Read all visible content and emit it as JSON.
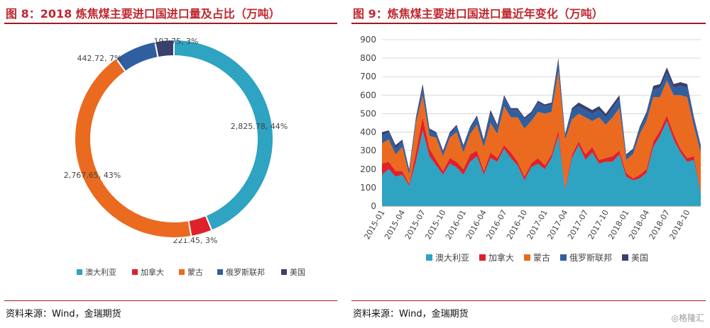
{
  "left": {
    "title": "图 8：2018 炼焦煤主要进口国进口量及占比（万吨）",
    "source": "资料来源：Wind，金瑞期货"
  },
  "right": {
    "title": "图 9：炼焦煤主要进口国进口量近年变化（万吨）",
    "source": "资料来源：Wind，金瑞期货"
  },
  "watermark": "◎格隆汇",
  "colors": {
    "澳大利亚": "#2ea3c2",
    "加拿大": "#e0202b",
    "蒙古": "#ea6a1f",
    "俄罗斯联邦": "#2f5f9e",
    "美国": "#3a3f6e",
    "title": "#c0272d"
  },
  "chart_data": [
    {
      "type": "pie",
      "style": "donut",
      "title": "2018 炼焦煤主要进口国进口量及占比（万吨）",
      "labels": [
        "澳大利亚",
        "加拿大",
        "蒙古",
        "俄罗斯联邦",
        "美国"
      ],
      "values": [
        2825.78,
        221.45,
        2767.65,
        442.72,
        197.75
      ],
      "data_labels": [
        "2,825.78, 44%",
        "221.45, 3%",
        "2,767.65, 43%",
        "442.72, 7%",
        "197.75, 3%"
      ],
      "legend": [
        "澳大利亚",
        "加拿大",
        "蒙古",
        "俄罗斯联邦",
        "美国"
      ],
      "legend_position": "bottom"
    },
    {
      "type": "area",
      "stacked": true,
      "title": "炼焦煤主要进口国进口量近年变化（万吨）",
      "x": [
        "2015-01",
        "2015-02",
        "2015-03",
        "2015-04",
        "2015-05",
        "2015-06",
        "2015-07",
        "2015-08",
        "2015-09",
        "2015-10",
        "2015-11",
        "2015-12",
        "2016-01",
        "2016-02",
        "2016-03",
        "2016-04",
        "2016-05",
        "2016-06",
        "2016-07",
        "2016-08",
        "2016-09",
        "2016-10",
        "2016-11",
        "2016-12",
        "2017-01",
        "2017-02",
        "2017-03",
        "2017-04",
        "2017-05",
        "2017-06",
        "2017-07",
        "2017-08",
        "2017-09",
        "2017-10",
        "2017-11",
        "2017-12",
        "2018-01",
        "2018-02",
        "2018-03",
        "2018-04",
        "2018-05",
        "2018-06",
        "2018-07",
        "2018-08",
        "2018-09",
        "2018-10",
        "2018-11",
        "2018-12"
      ],
      "x_tick_labels": [
        "2015-01",
        "2015-04",
        "2015-07",
        "2015-10",
        "2016-01",
        "2016-04",
        "2016-07",
        "2016-10",
        "2017-01",
        "2017-04",
        "2017-07",
        "2017-10",
        "2018-01",
        "2018-04",
        "2018-07",
        "2018-10"
      ],
      "series": [
        {
          "name": "澳大利亚",
          "values": [
            170,
            200,
            160,
            170,
            110,
            240,
            410,
            270,
            220,
            170,
            230,
            210,
            170,
            240,
            270,
            170,
            260,
            240,
            310,
            260,
            220,
            140,
            210,
            230,
            200,
            260,
            380,
            90,
            260,
            330,
            250,
            290,
            230,
            240,
            240,
            280,
            160,
            140,
            150,
            180,
            320,
            380,
            460,
            360,
            290,
            240,
            250,
            70
          ]
        },
        {
          "name": "加拿大",
          "values": [
            60,
            40,
            30,
            20,
            10,
            50,
            70,
            40,
            30,
            20,
            30,
            30,
            30,
            40,
            30,
            20,
            30,
            20,
            20,
            30,
            20,
            20,
            20,
            30,
            20,
            20,
            30,
            10,
            20,
            20,
            30,
            30,
            20,
            20,
            30,
            20,
            20,
            10,
            20,
            20,
            30,
            30,
            30,
            30,
            20,
            20,
            20,
            10
          ]
        },
        {
          "name": "蒙古",
          "values": [
            110,
            120,
            90,
            130,
            50,
            160,
            120,
            70,
            120,
            80,
            110,
            160,
            90,
            110,
            140,
            130,
            160,
            130,
            210,
            190,
            240,
            260,
            230,
            250,
            280,
            230,
            320,
            260,
            190,
            150,
            200,
            140,
            230,
            180,
            210,
            230,
            70,
            130,
            220,
            260,
            240,
            180,
            190,
            210,
            290,
            330,
            160,
            210
          ]
        },
        {
          "name": "俄罗斯联邦",
          "values": [
            40,
            40,
            30,
            30,
            20,
            20,
            40,
            30,
            20,
            20,
            20,
            30,
            30,
            30,
            40,
            30,
            50,
            40,
            50,
            40,
            40,
            50,
            40,
            50,
            40,
            40,
            50,
            20,
            50,
            40,
            40,
            40,
            40,
            40,
            50,
            50,
            20,
            20,
            30,
            40,
            40,
            50,
            40,
            40,
            50,
            50,
            40,
            30
          ]
        },
        {
          "name": "美国",
          "values": [
            20,
            10,
            20,
            10,
            10,
            10,
            20,
            10,
            10,
            10,
            10,
            10,
            10,
            10,
            10,
            10,
            20,
            10,
            10,
            10,
            10,
            10,
            10,
            10,
            10,
            10,
            20,
            10,
            10,
            20,
            20,
            20,
            20,
            20,
            20,
            20,
            10,
            10,
            10,
            10,
            20,
            20,
            30,
            20,
            20,
            20,
            10,
            10
          ]
        }
      ],
      "ylim": [
        0,
        900
      ],
      "y_ticks": [
        0,
        100,
        200,
        300,
        400,
        500,
        600,
        700,
        800,
        900
      ],
      "grid": "horizontal",
      "legend": [
        "澳大利亚",
        "加拿大",
        "蒙古",
        "俄罗斯联邦",
        "美国"
      ],
      "legend_position": "bottom"
    }
  ]
}
